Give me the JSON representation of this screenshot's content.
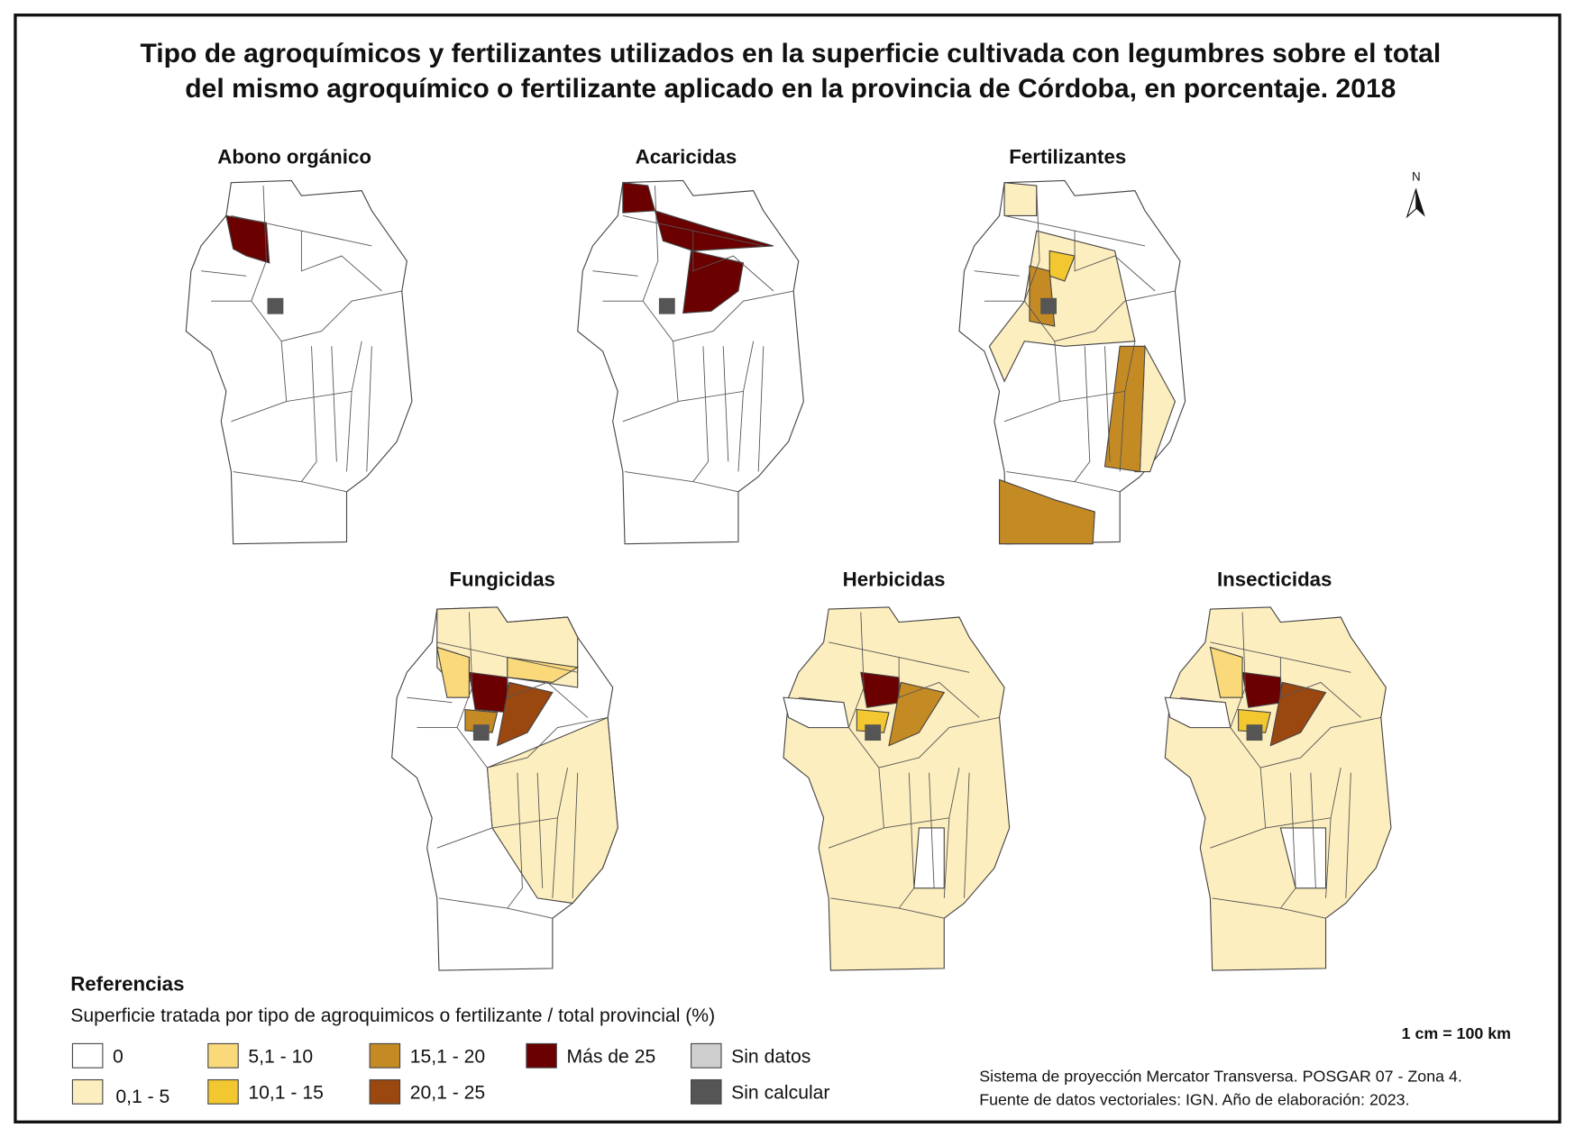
{
  "title_lines": [
    "Tipo de agroquímicos y fertilizantes utilizados en la superficie cultivada con legumbres sobre el total",
    "del mismo agroquímico o fertilizante aplicado en la provincia de Córdoba, en porcentaje. 2018"
  ],
  "maps": [
    {
      "title": "Abono orgánico"
    },
    {
      "title": "Acaricidas"
    },
    {
      "title": "Fertilizantes"
    },
    {
      "title": "Fungicidas"
    },
    {
      "title": "Herbicidas"
    },
    {
      "title": "Insecticidas"
    }
  ],
  "north": "N",
  "legend": {
    "title": "Referencias",
    "subtitle": "Superficie tratada por tipo de agroquimicos o fertilizante / total provincial (%)",
    "items": [
      {
        "label": "0"
      },
      {
        "label": "0,1 - 5"
      },
      {
        "label": "5,1 - 10"
      },
      {
        "label": "10,1 - 15"
      },
      {
        "label": "15,1 - 20"
      },
      {
        "label": "20,1 - 25"
      },
      {
        "label": "Más de 25"
      },
      {
        "label": "Sin datos"
      },
      {
        "label": "Sin calcular"
      }
    ]
  },
  "scale": "1 cm = 100 km",
  "notes": [
    "Sistema de proyección Mercator Transversa. POSGAR 07 - Zona 4.",
    "Fuente de datos vectoriales: IGN. Año de elaboración: 2023."
  ]
}
